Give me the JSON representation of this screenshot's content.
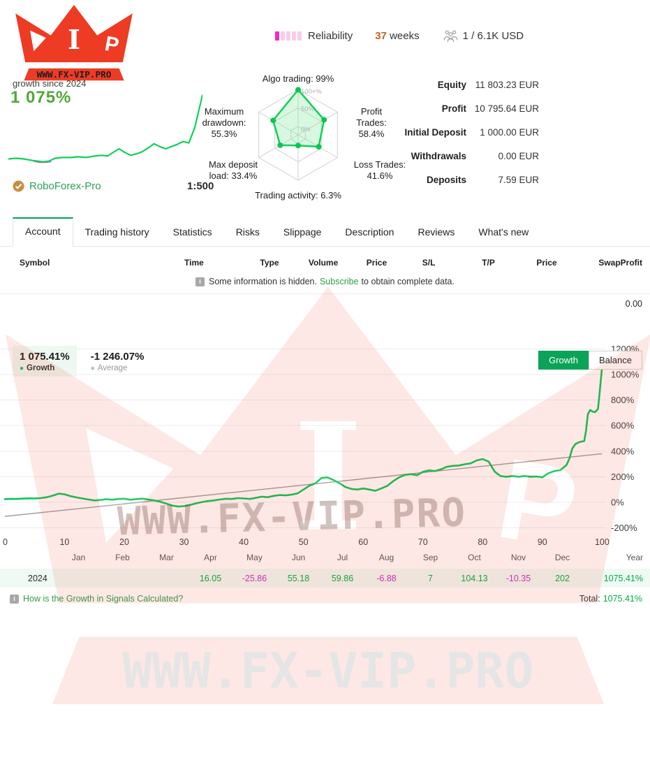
{
  "brand": {
    "site": "WWW.FX-VIP.PRO",
    "center_letter": "I",
    "right_letter": "P"
  },
  "icons": {
    "info": "i",
    "check": "✓"
  },
  "colors": {
    "line_green": "#0fc457",
    "bar_green": "#00e01f",
    "bar_light": "#86e8a5",
    "bar_faint": "#bdf2cf",
    "magenta": "#cf2bcf",
    "rel_solid": "#ef2cc8",
    "rel_faint": "#f8cdec",
    "active_tab_green": "#00a651",
    "button_green": "#0ba357",
    "link_green": "#2e9e44"
  },
  "header": {
    "growth_caption": "growth since 2024",
    "growth_value": "1 075%",
    "broker": {
      "name": "RoboForex-Pro",
      "leverage": "1:500"
    },
    "reliability_label": "Reliability",
    "weeks_value": "37",
    "weeks_label": "weeks",
    "subscribers": "1 / 6.1K USD",
    "stats": [
      {
        "label": "Equity",
        "value": "11 803.23 EUR",
        "bar_pct": 100,
        "bar_color": "#00e01f"
      },
      {
        "label": "Profit",
        "value": "10 795.64 EUR",
        "bar_pct": 91,
        "bar_color": "#00e01f"
      },
      {
        "label": "Initial Deposit",
        "value": "1 000.00 EUR",
        "bar_pct": 8,
        "bar_color": "#86e8a5"
      },
      {
        "label": "Withdrawals",
        "value": "0.00 EUR",
        "bar_pct": 0.7,
        "bar_color": "#bdf2cf"
      },
      {
        "label": "Deposits",
        "value": "7.59 EUR",
        "bar_pct": 1.4,
        "bar_color": "#bdf2cf"
      }
    ]
  },
  "tabs": [
    {
      "label": "Account",
      "active": true
    },
    {
      "label": "Trading history",
      "active": false
    },
    {
      "label": "Statistics",
      "active": false
    },
    {
      "label": "Risks",
      "active": false
    },
    {
      "label": "Slippage",
      "active": false
    },
    {
      "label": "Description",
      "active": false
    },
    {
      "label": "Reviews",
      "active": false
    },
    {
      "label": "What's new",
      "active": false
    }
  ],
  "trade_table": {
    "columns": [
      "Symbol",
      "Time",
      "Type",
      "Volume",
      "Price",
      "S/L",
      "T/P",
      "Price",
      "Swap",
      "Profit"
    ],
    "notice": {
      "prefix": "Some information is hidden.",
      "link": "Subscribe",
      "suffix": "to obtain complete data."
    },
    "summary_profit": "0.00"
  },
  "chart_section": {
    "legend": [
      {
        "value": "1 075.41%",
        "label": "Growth",
        "dot": "#12c75c"
      },
      {
        "value": "-1 246.07%",
        "label": "Average",
        "dot": "#b5b5b5"
      }
    ],
    "buttons": [
      {
        "label": "Growth",
        "active": true
      },
      {
        "label": "Balance",
        "active": false
      }
    ],
    "footer_link": "How is the Growth in Signals Calculated?",
    "total_label": "Total:",
    "total_value": "1075.41%"
  },
  "chart_data": [
    {
      "type": "line",
      "name": "growth-sparkline",
      "color": "#0fd157",
      "x": [
        0,
        4,
        8,
        12,
        15,
        18,
        21,
        24,
        28,
        32,
        36,
        40,
        44,
        48,
        51,
        54,
        57,
        60,
        63,
        66,
        69,
        72,
        75,
        78,
        81,
        84,
        87,
        90,
        93,
        96,
        100
      ],
      "y": [
        12,
        13,
        12,
        10,
        9,
        8,
        9,
        13,
        14,
        14,
        15,
        14,
        16,
        17,
        16,
        21,
        26,
        21,
        17,
        19,
        22,
        27,
        33,
        29,
        26,
        29,
        32,
        36,
        34,
        55,
        100
      ],
      "dip_segment": {
        "color": "#e544d6",
        "x": [
          13,
          16,
          19,
          22
        ],
        "y": [
          9,
          7.5,
          7.5,
          8.5
        ]
      }
    },
    {
      "type": "radar",
      "name": "signal-quality-radar",
      "rings": [
        "100+%",
        "50%",
        "0%"
      ],
      "axes": [
        {
          "label": "Algo trading",
          "value": 99,
          "display": "Algo trading: 99%"
        },
        {
          "label": "Profit Trades",
          "value": 58.4,
          "display": "Profit Trades: 58.4%"
        },
        {
          "label": "Loss Trades",
          "value": 41.6,
          "display": "Loss Trades: 41.6%"
        },
        {
          "label": "Trading activity",
          "value": 6.3,
          "display": "Trading activity: 6.3%"
        },
        {
          "label": "Max deposit load",
          "value": 33.4,
          "display": "Max deposit load: 33.4%"
        },
        {
          "label": "Maximum drawdown",
          "value": 55.3,
          "display": "Maximum drawdown: 55.3%"
        }
      ]
    },
    {
      "type": "line",
      "name": "growth-main-chart",
      "title": "Growth",
      "ylim": [
        -200,
        1200
      ],
      "yticks": [
        "1200%",
        "1000%",
        "800%",
        "600%",
        "400%",
        "200%",
        "0%",
        "-200%"
      ],
      "xticks": [
        "0",
        "10",
        "20",
        "30",
        "40",
        "50",
        "60",
        "70",
        "80",
        "90",
        "100"
      ],
      "x": [
        0,
        1,
        2,
        3,
        4,
        5,
        6,
        7,
        8,
        9,
        10,
        11,
        12,
        13,
        14,
        15,
        16,
        17,
        18,
        19,
        20,
        21,
        22,
        23,
        24,
        25,
        26,
        27,
        28,
        29,
        30,
        31,
        32,
        33,
        34,
        35,
        36,
        37,
        38,
        39,
        40,
        41,
        42,
        43,
        44,
        45,
        46,
        47,
        48,
        49,
        50,
        51,
        52,
        53,
        54,
        55,
        56,
        57,
        58,
        59,
        60,
        61,
        62,
        63,
        64,
        65,
        66,
        67,
        68,
        69,
        70,
        71,
        72,
        73,
        74,
        75,
        76,
        77,
        78,
        79,
        80,
        81,
        82,
        83,
        84,
        85,
        86,
        87,
        88,
        89,
        90,
        91,
        92,
        93,
        94,
        94.5,
        95,
        95.5,
        96,
        96.5,
        97,
        97.3,
        97.6,
        98,
        98.4,
        98.8,
        99,
        99.3,
        99.6,
        100
      ],
      "y": [
        25,
        27,
        26,
        29,
        31,
        30,
        33,
        40,
        52,
        68,
        63,
        48,
        38,
        30,
        22,
        15,
        18,
        24,
        20,
        26,
        28,
        20,
        25,
        29,
        22,
        15,
        5,
        -10,
        -25,
        -33,
        -30,
        -20,
        -8,
        2,
        10,
        15,
        22,
        28,
        26,
        33,
        30,
        26,
        35,
        44,
        40,
        50,
        57,
        54,
        60,
        70,
        100,
        130,
        150,
        190,
        195,
        175,
        150,
        120,
        105,
        100,
        108,
        100,
        90,
        108,
        128,
        165,
        195,
        215,
        220,
        212,
        238,
        250,
        244,
        258,
        278,
        285,
        288,
        298,
        305,
        328,
        338,
        318,
        240,
        205,
        200,
        206,
        200,
        206,
        200,
        202,
        196,
        228,
        244,
        252,
        290,
        340,
        420,
        455,
        468,
        475,
        480,
        560,
        690,
        722,
        710,
        705,
        715,
        730,
        870,
        1070
      ],
      "trend": {
        "name": "average-trend",
        "color": "#9e9e9e",
        "x": [
          0,
          100
        ],
        "y": [
          -110,
          380
        ]
      }
    },
    {
      "type": "table",
      "name": "monthly-growth",
      "year": "2024",
      "months": [
        "Jan",
        "Feb",
        "Mar",
        "Apr",
        "May",
        "Jun",
        "Jul",
        "Aug",
        "Sep",
        "Oct",
        "Nov",
        "Dec"
      ],
      "year_column": "Year",
      "values": [
        "",
        "",
        "",
        "16.05",
        "-25.86",
        "55.18",
        "59.86",
        "-6.88",
        "7",
        "104.13",
        "-10.35",
        "202"
      ],
      "year_total": "1075.41%"
    }
  ]
}
